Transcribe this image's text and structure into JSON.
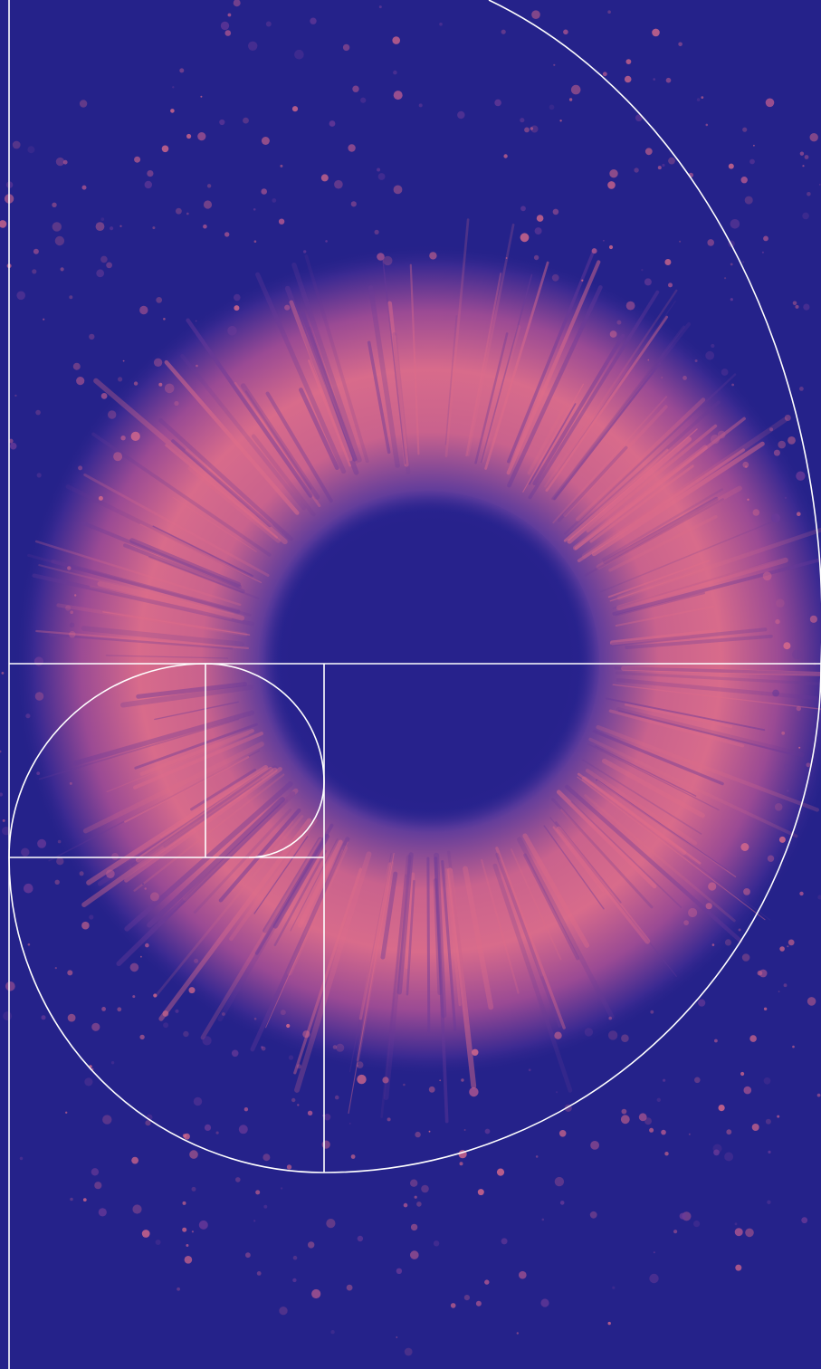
{
  "colors": {
    "background": "#25228a",
    "iris_light": "#e06d8a",
    "iris_mid": "#b85a90",
    "iris_dark": "#6a3a98",
    "pupil": "#27228c",
    "guide_lines": "#ffffff"
  },
  "icons": {
    "main": "eye-iris-illustration",
    "overlay": "golden-ratio-spiral"
  }
}
